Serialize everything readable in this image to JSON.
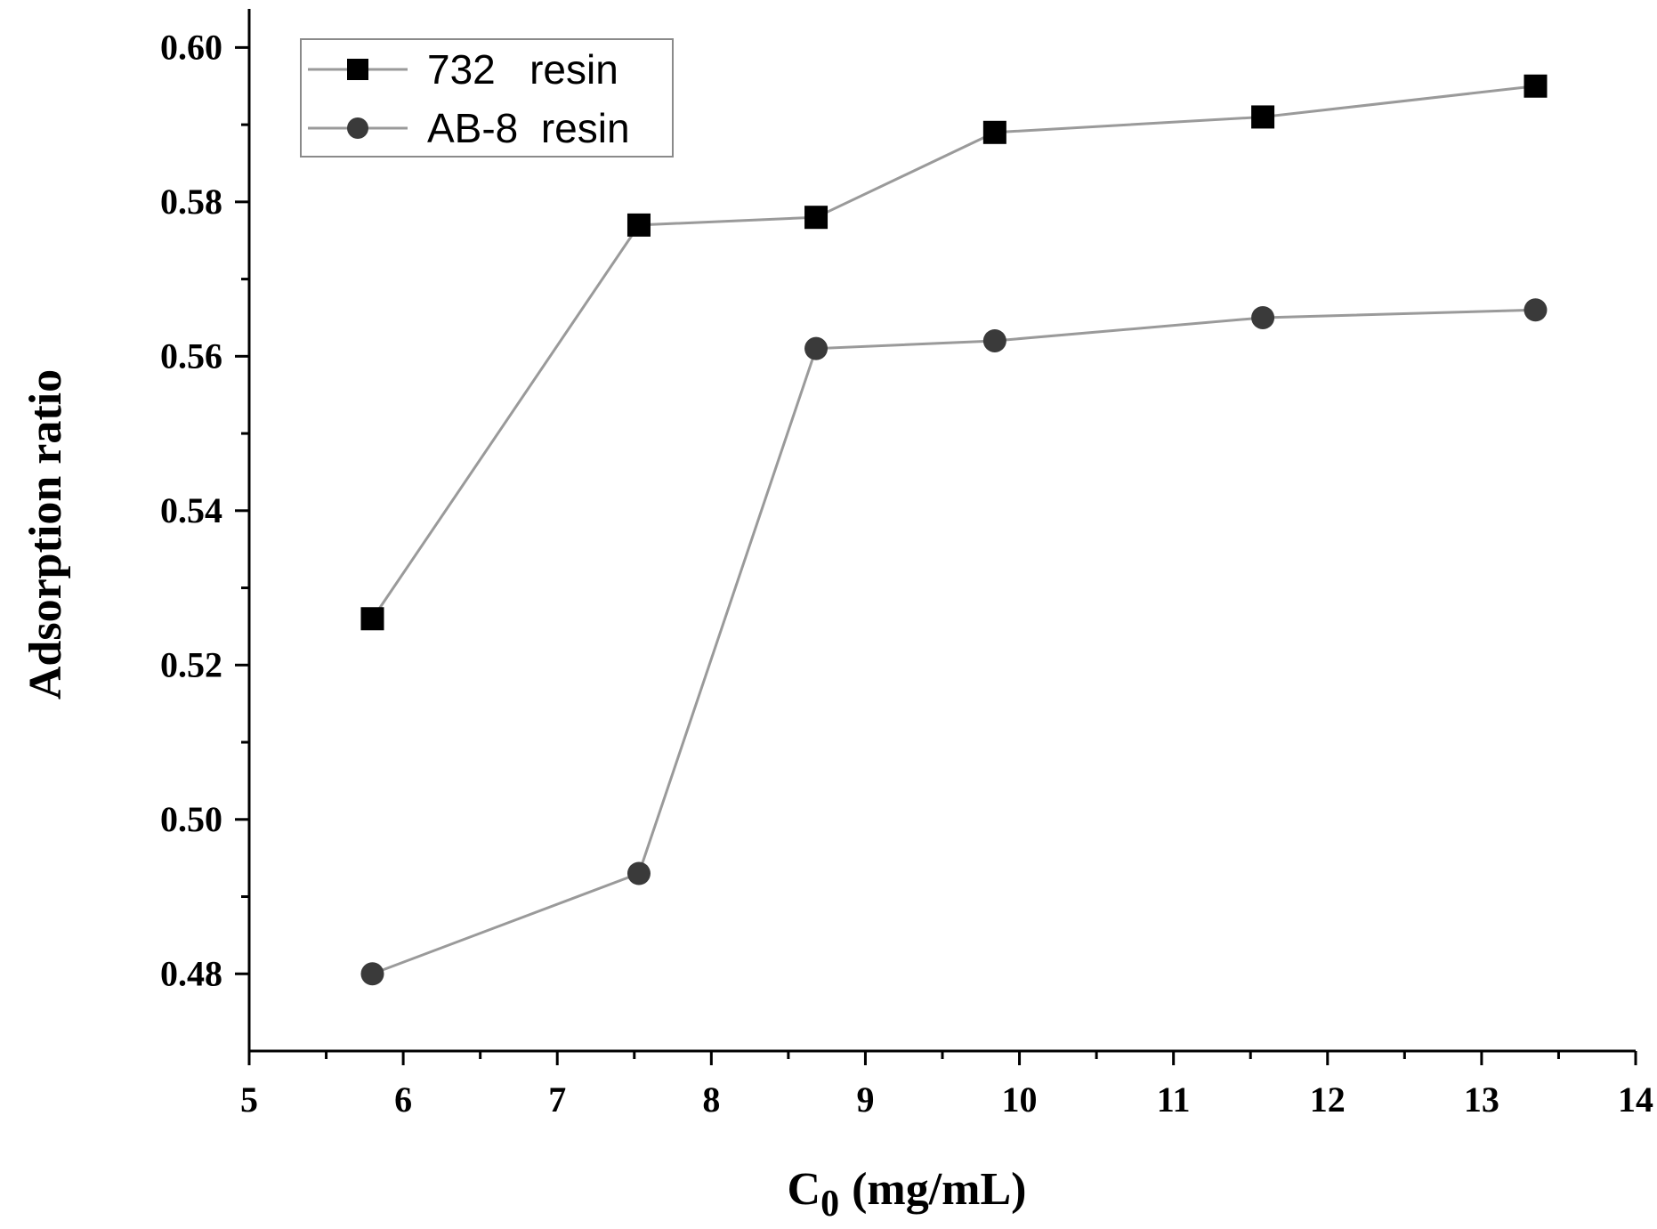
{
  "chart_data": {
    "type": "line",
    "title": "",
    "ylabel": "Adsorption ratio",
    "xlabel": {
      "main": "C",
      "subscript": "0",
      "unit": "(mg/mL)"
    },
    "xlim": [
      5,
      14
    ],
    "ylim": [
      0.47,
      0.605
    ],
    "x_ticks": [
      5,
      6,
      7,
      8,
      9,
      10,
      11,
      12,
      13,
      14
    ],
    "y_ticks": [
      0.48,
      0.5,
      0.52,
      0.54,
      0.56,
      0.58,
      0.6
    ],
    "y_tick_labels": [
      "0.48",
      "0.50",
      "0.52",
      "0.54",
      "0.56",
      "0.58",
      "0.60"
    ],
    "grid": false,
    "legend_position": "top-left",
    "series": [
      {
        "name": "732   resin",
        "marker": "square",
        "color": "#000000",
        "line_color": "#9a9a9a",
        "x": [
          5.8,
          7.53,
          8.68,
          9.84,
          11.58,
          13.35
        ],
        "y": [
          0.526,
          0.577,
          0.578,
          0.589,
          0.591,
          0.595
        ]
      },
      {
        "name": "AB-8  resin",
        "marker": "circle",
        "color": "#3a3a3a",
        "line_color": "#9a9a9a",
        "x": [
          5.8,
          7.53,
          8.68,
          9.84,
          11.58,
          13.35
        ],
        "y": [
          0.48,
          0.493,
          0.561,
          0.562,
          0.565,
          0.566
        ]
      }
    ]
  }
}
